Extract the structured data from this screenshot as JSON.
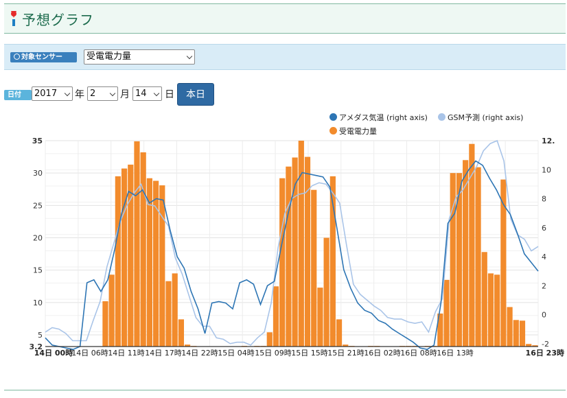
{
  "header": {
    "title": "予想グラフ"
  },
  "filter": {
    "sensor_badge": "対象センサー",
    "sensor_value": "受電電力量",
    "date_badge": "日付",
    "year": "2017",
    "year_unit": "年",
    "month": "2",
    "month_unit": "月",
    "day": "14",
    "day_unit": "日",
    "today_button": "本日"
  },
  "legend": {
    "amedas": "アメダス気温 (right axis)",
    "gsm": "GSM予測 (right axis)",
    "power": "受電電力量"
  },
  "colors": {
    "bar": "#f28b2c",
    "amedas": "#2d75b4",
    "gsm": "#a9c4e8",
    "accent": "#1c6b4d"
  },
  "chart_data": {
    "type": "bar",
    "left_axis": {
      "ticks": [
        "35",
        "30",
        "25",
        "20",
        "15",
        "10",
        "5",
        "3.2"
      ],
      "range": [
        3.2,
        35
      ]
    },
    "right_axis": {
      "ticks": [
        "12.",
        "10",
        "8",
        "6",
        "4",
        "2",
        "0",
        "-2"
      ],
      "range": [
        -2.2,
        12
      ]
    },
    "x_tick_labels": [
      "14日 00時",
      "14日 06時",
      "14日 11時",
      "14日 17時",
      "14日 22時",
      "15日 04時",
      "15日 09時",
      "15日 15時",
      "15日 21時",
      "16日 02時",
      "16日 08時",
      "16日 13時",
      "16日 23時"
    ],
    "series": [
      {
        "name": "受電電力量",
        "type": "bar",
        "values": [
          3.2,
          3.2,
          3.2,
          3.2,
          3.2,
          3.2,
          3.2,
          3.2,
          3.2,
          10.2,
          14.3,
          29.5,
          30.7,
          31.3,
          34.9,
          33.2,
          29.2,
          28.8,
          28.1,
          13.3,
          14.5,
          7.4,
          3.5,
          3.3,
          3.2,
          3.2,
          3.2,
          3.2,
          3.2,
          3.2,
          3.2,
          3.3,
          3.2,
          3.3,
          3.3,
          5.4,
          12.5,
          29.2,
          31.0,
          32.4,
          35.0,
          32.5,
          27.4,
          12.3,
          20.0,
          29.5,
          7.4,
          3.5,
          3.3,
          3.2,
          3.2,
          3.3,
          3.3,
          3.2,
          3.2,
          3.2,
          3.3,
          3.3,
          3.3,
          3.2,
          3.3,
          3.3,
          8.3,
          13.5,
          30.0,
          30.0,
          32.0,
          34.5,
          30.9,
          17.8,
          14.5,
          14.3,
          29.0,
          9.3,
          7.3,
          7.2,
          3.6,
          3.4
        ]
      },
      {
        "name": "アメダス気温",
        "type": "line",
        "values": [
          -1.6,
          -2.1,
          -2.2,
          -2.3,
          -2.4,
          -2.2,
          2.2,
          2.4,
          1.6,
          2.4,
          4.5,
          7.0,
          8.5,
          8.2,
          8.6,
          7.7,
          8.0,
          7.9,
          5.8,
          4.0,
          3.2,
          1.6,
          0.4,
          -1.3,
          0.8,
          0.9,
          0.8,
          0.4,
          2.2,
          2.4,
          2.1,
          0.7,
          2.0,
          2.3,
          4.7,
          7.0,
          9.0,
          9.8,
          9.7,
          9.6,
          9.5,
          8.8,
          6.0,
          3.1,
          1.8,
          0.8,
          0.3,
          0.1,
          -0.4,
          -0.6,
          -1.0,
          -1.3,
          -1.6,
          -1.9,
          -2.3,
          -2.4,
          -2.1,
          0.8,
          6.3,
          7.0,
          9.2,
          10.0,
          10.6,
          10.3,
          9.4,
          8.6,
          7.6,
          6.9,
          5.6,
          4.2,
          3.6,
          3.0
        ],
        "note_units": "right axis"
      },
      {
        "name": "GSM予測",
        "type": "line",
        "values": [
          -1.2,
          -0.9,
          -1.0,
          -1.3,
          -1.8,
          -1.8,
          -1.8,
          -0.4,
          0.9,
          3.3,
          4.9,
          6.5,
          7.6,
          8.4,
          9.0,
          7.6,
          7.5,
          6.8,
          6.1,
          3.9,
          2.8,
          1.3,
          -0.2,
          -0.8,
          -0.8,
          -1.6,
          -1.7,
          -2.0,
          -1.9,
          -1.9,
          -2.1,
          -1.6,
          -1.2,
          0.8,
          4.6,
          7.0,
          8.0,
          8.3,
          8.4,
          8.9,
          9.1,
          9.0,
          8.4,
          7.7,
          4.8,
          2.1,
          1.4,
          1.0,
          0.6,
          0.3,
          -0.2,
          -0.3,
          -0.3,
          -0.5,
          -0.6,
          -0.5,
          -1.2,
          0.2,
          1.1,
          6.6,
          8.1,
          8.6,
          9.4,
          10.2,
          11.3,
          11.8,
          12.0,
          10.6,
          6.6,
          5.5,
          5.2,
          4.4,
          4.7
        ]
      }
    ]
  }
}
